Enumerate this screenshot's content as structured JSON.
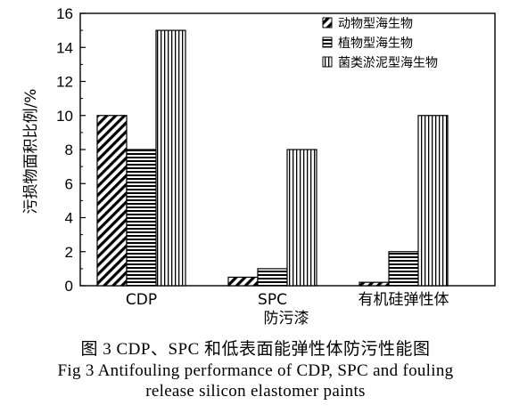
{
  "chart_data": {
    "type": "bar",
    "categories": [
      "CDP",
      "SPC",
      "有机硅弹性体"
    ],
    "series": [
      {
        "name": "动物型海生物",
        "values": [
          10,
          0.5,
          0.2
        ],
        "pattern": "diagonal"
      },
      {
        "name": "植物型海生物",
        "values": [
          8,
          1,
          2
        ],
        "pattern": "horizontal"
      },
      {
        "name": "菌类淤泥型海生物",
        "values": [
          15,
          8,
          10
        ],
        "pattern": "vertical"
      }
    ],
    "xlabel": "防污漆",
    "ylabel": "污损物面积比例/%",
    "ylim": [
      0,
      16
    ],
    "yticks": [
      0,
      2,
      4,
      6,
      8,
      10,
      12,
      14,
      16
    ],
    "grid": false,
    "legend_position": "top-right"
  },
  "caption": {
    "line1": "图 3   CDP、SPC 和低表面能弹性体防污性能图",
    "line2": "Fig 3   Antifouling performance of CDP, SPC and fouling",
    "line3": "release silicon elastomer paints"
  }
}
